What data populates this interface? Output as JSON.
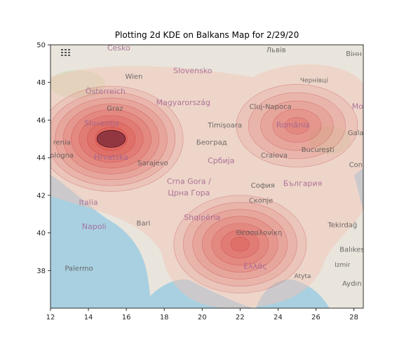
{
  "chart_data": {
    "type": "heatmap",
    "title": "Plotting 2d KDE on Balkans Map for 2/29/20",
    "xlabel": "",
    "ylabel": "",
    "xlim": [
      12,
      28.5
    ],
    "ylim": [
      36,
      50
    ],
    "xticks": [
      12,
      14,
      16,
      18,
      20,
      22,
      24,
      26,
      28
    ],
    "yticks": [
      38,
      40,
      42,
      44,
      46,
      48,
      50
    ],
    "kde_peaks": [
      {
        "x": 15.2,
        "y": 45.0,
        "rx": 3.8,
        "ry": 2.8,
        "levels": 9
      },
      {
        "x": 22.0,
        "y": 39.4,
        "rx": 3.5,
        "ry": 2.6,
        "levels": 7
      },
      {
        "x": 25.0,
        "y": 45.7,
        "rx": 3.2,
        "ry": 2.2,
        "levels": 5
      }
    ],
    "colors": {
      "kde": "#d73027",
      "background_map": "#eae6dd",
      "sea": "#a6cfe0",
      "green": "#c9dfb4"
    }
  },
  "map_labels": [
    {
      "text": "Česko",
      "x": 15.6,
      "y": 49.7,
      "size": 11
    },
    {
      "text": "Львів",
      "x": 23.9,
      "y": 49.6,
      "size": 10
    },
    {
      "text": "Вінн",
      "x": 28.0,
      "y": 49.4,
      "size": 10
    },
    {
      "text": "Wien",
      "x": 16.4,
      "y": 48.2,
      "size": 10
    },
    {
      "text": "Slovensko",
      "x": 19.5,
      "y": 48.5,
      "size": 11
    },
    {
      "text": "Чернівці",
      "x": 25.9,
      "y": 48.0,
      "size": 9
    },
    {
      "text": "Österreich",
      "x": 14.9,
      "y": 47.4,
      "size": 11
    },
    {
      "text": "Magyarország",
      "x": 19.0,
      "y": 46.8,
      "size": 11
    },
    {
      "text": "Cluj-Napoca",
      "x": 23.6,
      "y": 46.6,
      "size": 10
    },
    {
      "text": "Mo",
      "x": 28.2,
      "y": 46.6,
      "size": 11
    },
    {
      "text": "Graz",
      "x": 15.4,
      "y": 46.5,
      "size": 10
    },
    {
      "text": "Slovenija",
      "x": 14.7,
      "y": 45.7,
      "size": 11
    },
    {
      "text": "Timișoara",
      "x": 21.2,
      "y": 45.6,
      "size": 10
    },
    {
      "text": "România",
      "x": 24.8,
      "y": 45.6,
      "size": 11
    },
    {
      "text": "Gala",
      "x": 28.1,
      "y": 45.2,
      "size": 10
    },
    {
      "text": "renia",
      "x": 12.6,
      "y": 44.7,
      "size": 10
    },
    {
      "text": "Београд",
      "x": 20.5,
      "y": 44.7,
      "size": 10
    },
    {
      "text": "București",
      "x": 26.1,
      "y": 44.3,
      "size": 10
    },
    {
      "text": "ologna",
      "x": 12.6,
      "y": 44.0,
      "size": 10
    },
    {
      "text": "Hrvatska",
      "x": 15.2,
      "y": 43.9,
      "size": 11
    },
    {
      "text": "Sarajevo",
      "x": 17.4,
      "y": 43.6,
      "size": 10
    },
    {
      "text": "Србија",
      "x": 21.0,
      "y": 43.7,
      "size": 11
    },
    {
      "text": "Craiova",
      "x": 23.8,
      "y": 44.0,
      "size": 10
    },
    {
      "text": "Cons",
      "x": 28.2,
      "y": 43.5,
      "size": 10
    },
    {
      "text": "Crna Gora /",
      "x": 19.3,
      "y": 42.6,
      "size": 11
    },
    {
      "text": "Црна Гора",
      "x": 19.3,
      "y": 42.0,
      "size": 11
    },
    {
      "text": "София",
      "x": 23.2,
      "y": 42.4,
      "size": 10
    },
    {
      "text": "България",
      "x": 25.3,
      "y": 42.5,
      "size": 11
    },
    {
      "text": "Italia",
      "x": 14.0,
      "y": 41.5,
      "size": 11
    },
    {
      "text": "Скопје",
      "x": 23.1,
      "y": 41.6,
      "size": 10
    },
    {
      "text": "Shqipëria",
      "x": 20.0,
      "y": 40.7,
      "size": 11
    },
    {
      "text": "Bari",
      "x": 16.9,
      "y": 40.4,
      "size": 10
    },
    {
      "text": "Napoli",
      "x": 14.3,
      "y": 40.2,
      "size": 11
    },
    {
      "text": "Tekirdağ",
      "x": 27.4,
      "y": 40.3,
      "size": 10
    },
    {
      "text": "Θεσσαλονίκη",
      "x": 23.0,
      "y": 39.9,
      "size": 10
    },
    {
      "text": "Balıkes",
      "x": 27.9,
      "y": 39.0,
      "size": 10
    },
    {
      "text": "Palermo",
      "x": 13.5,
      "y": 38.0,
      "size": 10
    },
    {
      "text": "Ελλάς",
      "x": 22.8,
      "y": 38.1,
      "size": 11
    },
    {
      "text": "Aydın",
      "x": 27.9,
      "y": 37.2,
      "size": 10
    },
    {
      "text": "Izmir",
      "x": 27.4,
      "y": 38.2,
      "size": 9
    },
    {
      "text": "Atyta",
      "x": 25.3,
      "y": 37.6,
      "size": 9
    }
  ]
}
